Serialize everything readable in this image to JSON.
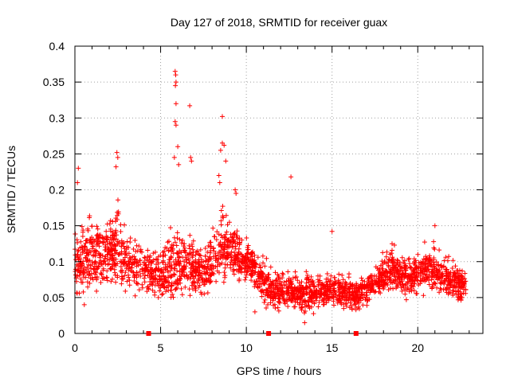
{
  "chart_data": {
    "type": "scatter",
    "title": "Day 127 of 2018, SRMTID for receiver guax",
    "xlabel": "GPS time / hours",
    "ylabel": "SRMTID / TECUs",
    "xlim": [
      0,
      23.8
    ],
    "ylim": [
      0,
      0.4
    ],
    "xticks": [
      0,
      5,
      10,
      15,
      20
    ],
    "xtick_labels": [
      "0",
      "5",
      "10",
      "15",
      "20"
    ],
    "yticks": [
      0,
      0.05,
      0.1,
      0.15,
      0.2,
      0.25,
      0.3,
      0.35,
      0.4
    ],
    "ytick_labels": [
      "0",
      "0.05",
      "0.1",
      "0.15",
      "0.2",
      "0.25",
      "0.3",
      "0.35",
      "0.4"
    ],
    "grid": true,
    "marker": "+",
    "series_color": "#ff0000",
    "gap_markers_x": [
      4.3,
      11.3,
      16.4
    ],
    "envelope": [
      {
        "x": 0.0,
        "low": 0.045,
        "mid": 0.09,
        "high": 0.15
      },
      {
        "x": 0.5,
        "low": 0.04,
        "mid": 0.1,
        "high": 0.18
      },
      {
        "x": 1.0,
        "low": 0.05,
        "mid": 0.11,
        "high": 0.18
      },
      {
        "x": 2.0,
        "low": 0.045,
        "mid": 0.11,
        "high": 0.16
      },
      {
        "x": 2.5,
        "low": 0.04,
        "mid": 0.12,
        "high": 0.21
      },
      {
        "x": 3.0,
        "low": 0.05,
        "mid": 0.1,
        "high": 0.15
      },
      {
        "x": 4.0,
        "low": 0.05,
        "mid": 0.09,
        "high": 0.13
      },
      {
        "x": 5.0,
        "low": 0.04,
        "mid": 0.08,
        "high": 0.12
      },
      {
        "x": 5.8,
        "low": 0.04,
        "mid": 0.09,
        "high": 0.17
      },
      {
        "x": 6.5,
        "low": 0.05,
        "mid": 0.1,
        "high": 0.15
      },
      {
        "x": 7.5,
        "low": 0.04,
        "mid": 0.08,
        "high": 0.13
      },
      {
        "x": 8.5,
        "low": 0.06,
        "mid": 0.12,
        "high": 0.19
      },
      {
        "x": 9.5,
        "low": 0.06,
        "mid": 0.11,
        "high": 0.16
      },
      {
        "x": 10.5,
        "low": 0.05,
        "mid": 0.09,
        "high": 0.12
      },
      {
        "x": 11.5,
        "low": 0.03,
        "mid": 0.06,
        "high": 0.1
      },
      {
        "x": 13.0,
        "low": 0.025,
        "mid": 0.055,
        "high": 0.09
      },
      {
        "x": 15.0,
        "low": 0.03,
        "mid": 0.06,
        "high": 0.095
      },
      {
        "x": 16.5,
        "low": 0.03,
        "mid": 0.05,
        "high": 0.08
      },
      {
        "x": 17.5,
        "low": 0.04,
        "mid": 0.07,
        "high": 0.1
      },
      {
        "x": 18.5,
        "low": 0.05,
        "mid": 0.09,
        "high": 0.13
      },
      {
        "x": 19.5,
        "low": 0.045,
        "mid": 0.075,
        "high": 0.11
      },
      {
        "x": 20.5,
        "low": 0.05,
        "mid": 0.09,
        "high": 0.13
      },
      {
        "x": 21.5,
        "low": 0.045,
        "mid": 0.08,
        "high": 0.13
      },
      {
        "x": 22.8,
        "low": 0.04,
        "mid": 0.065,
        "high": 0.09
      }
    ],
    "notable_points": [
      {
        "x": 5.85,
        "y": 0.365
      },
      {
        "x": 5.88,
        "y": 0.36
      },
      {
        "x": 5.9,
        "y": 0.35
      },
      {
        "x": 5.86,
        "y": 0.345
      },
      {
        "x": 5.9,
        "y": 0.32
      },
      {
        "x": 5.85,
        "y": 0.295
      },
      {
        "x": 5.9,
        "y": 0.29
      },
      {
        "x": 6.0,
        "y": 0.26
      },
      {
        "x": 5.8,
        "y": 0.245
      },
      {
        "x": 6.05,
        "y": 0.235
      },
      {
        "x": 6.7,
        "y": 0.317
      },
      {
        "x": 6.75,
        "y": 0.245
      },
      {
        "x": 6.8,
        "y": 0.24
      },
      {
        "x": 8.6,
        "y": 0.302
      },
      {
        "x": 8.6,
        "y": 0.265
      },
      {
        "x": 8.7,
        "y": 0.262
      },
      {
        "x": 8.5,
        "y": 0.255
      },
      {
        "x": 8.8,
        "y": 0.24
      },
      {
        "x": 8.4,
        "y": 0.22
      },
      {
        "x": 8.45,
        "y": 0.21
      },
      {
        "x": 2.45,
        "y": 0.252
      },
      {
        "x": 2.5,
        "y": 0.245
      },
      {
        "x": 2.4,
        "y": 0.232
      },
      {
        "x": 0.2,
        "y": 0.23
      },
      {
        "x": 0.15,
        "y": 0.21
      },
      {
        "x": 12.6,
        "y": 0.218
      },
      {
        "x": 9.35,
        "y": 0.2
      },
      {
        "x": 9.4,
        "y": 0.195
      },
      {
        "x": 15.0,
        "y": 0.142
      },
      {
        "x": 21.0,
        "y": 0.15
      },
      {
        "x": 13.4,
        "y": 0.015
      },
      {
        "x": 18.5,
        "y": 0.125
      },
      {
        "x": 0.55,
        "y": 0.04
      },
      {
        "x": 10.5,
        "y": 0.03
      }
    ]
  }
}
